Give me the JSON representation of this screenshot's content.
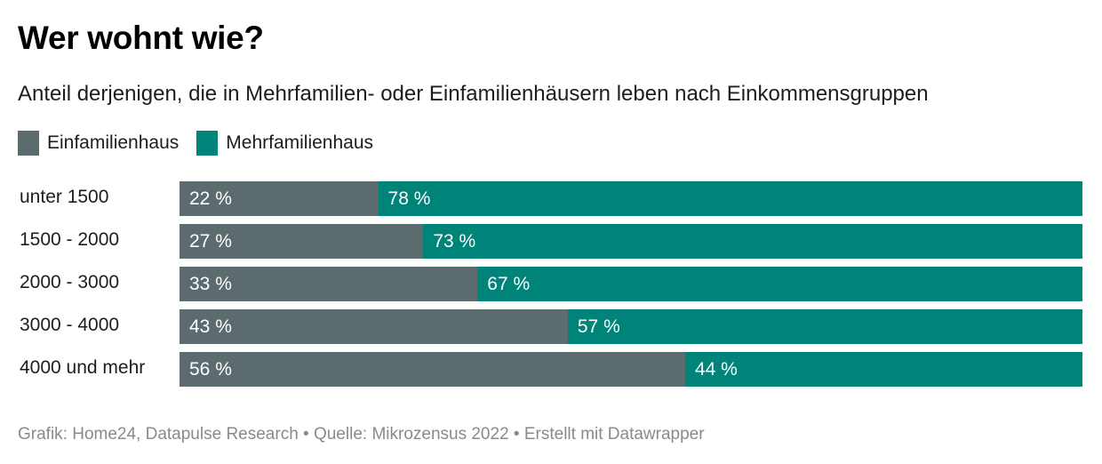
{
  "header": {
    "title": "Wer wohnt wie?",
    "subtitle": "Anteil derjenigen, die in Mehrfamilien- oder Einfamilienhäusern leben nach Einkommensgruppen"
  },
  "legend": [
    {
      "label": "Einfamilienhaus",
      "color": "#5c6b6e"
    },
    {
      "label": "Mehrfamilienhaus",
      "color": "#00847a"
    }
  ],
  "footer": {
    "text": "Grafik: Home24, Datapulse Research • Quelle: Mikrozensus 2022 • Erstellt mit Datawrapper"
  },
  "chart_data": {
    "type": "bar",
    "orientation": "horizontal",
    "stacked": true,
    "title": "Wer wohnt wie?",
    "subtitle": "Anteil derjenigen, die in Mehrfamilien- oder Einfamilienhäusern leben nach Einkommensgruppen",
    "xlabel": "",
    "ylabel": "",
    "xlim": [
      0,
      100
    ],
    "unit": "%",
    "legend_position": "top-left",
    "grid": false,
    "categories": [
      "unter 1500",
      "1500 - 2000",
      "2000 - 3000",
      "3000 - 4000",
      "4000 und mehr"
    ],
    "series": [
      {
        "name": "Einfamilienhaus",
        "color": "#5c6b6e",
        "values": [
          22,
          27,
          33,
          43,
          56
        ],
        "labels": [
          "22 %",
          "27 %",
          "33 %",
          "43 %",
          "56 %"
        ]
      },
      {
        "name": "Mehrfamilienhaus",
        "color": "#00847a",
        "values": [
          78,
          73,
          67,
          57,
          44
        ],
        "labels": [
          "78 %",
          "73 %",
          "67 %",
          "57 %",
          "44 %"
        ]
      }
    ]
  }
}
